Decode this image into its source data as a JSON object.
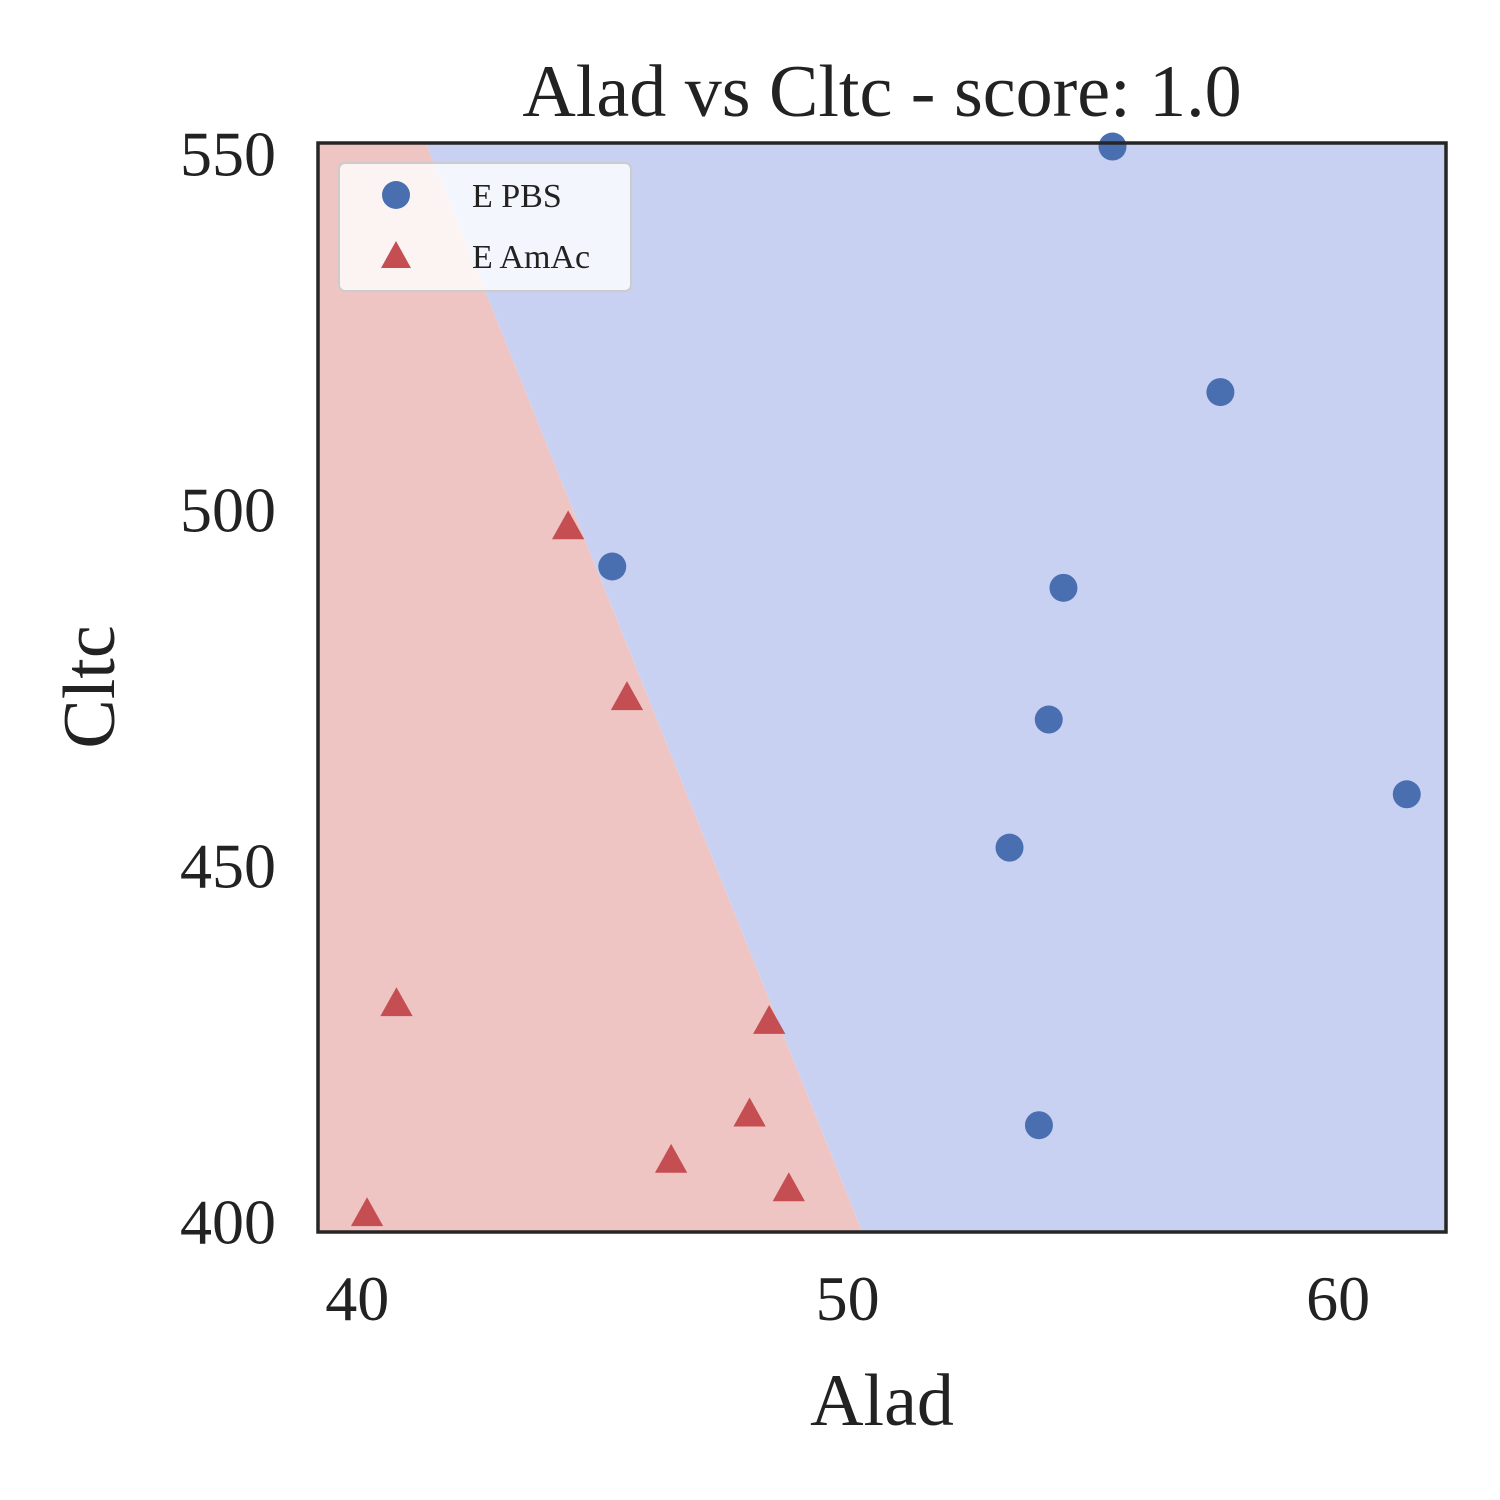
{
  "chart_data": {
    "type": "scatter",
    "title": "Alad vs Cltc - score: 1.0",
    "xlabel": "Alad",
    "ylabel": "Cltc",
    "xlim": [
      39.2,
      62.2
    ],
    "ylim": [
      398.5,
      551.5
    ],
    "xticks": [
      40,
      50,
      60
    ],
    "yticks": [
      400,
      450,
      500,
      550
    ],
    "grid": false,
    "legend_position": "top-left",
    "decision_boundary": {
      "points": [
        [
          41.4,
          551.5
        ],
        [
          50.3,
          398.5
        ]
      ],
      "left_region_color": "#efc5c4",
      "right_region_color": "#c9d1f2"
    },
    "series": [
      {
        "name": "E PBS",
        "marker": "circle",
        "color": "#4a6fb0",
        "points": [
          [
            55.4,
            551.0
          ],
          [
            57.6,
            516.5
          ],
          [
            45.2,
            492.0
          ],
          [
            54.4,
            489.0
          ],
          [
            54.1,
            470.5
          ],
          [
            61.4,
            460.0
          ],
          [
            53.3,
            452.5
          ],
          [
            53.9,
            413.5
          ]
        ]
      },
      {
        "name": "E AmAc",
        "marker": "triangle",
        "color": "#c44e52",
        "points": [
          [
            44.3,
            497.5
          ],
          [
            45.5,
            473.5
          ],
          [
            40.8,
            430.5
          ],
          [
            48.4,
            428.0
          ],
          [
            48.0,
            415.0
          ],
          [
            46.4,
            408.5
          ],
          [
            48.8,
            404.5
          ],
          [
            40.2,
            401.0
          ]
        ]
      }
    ]
  }
}
